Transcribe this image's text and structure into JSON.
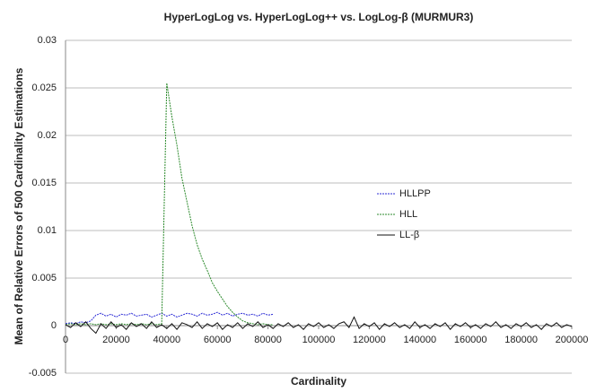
{
  "chart_data": {
    "type": "line",
    "title": "HyperLogLog vs. HyperLogLog++ vs. LogLog-β (MURMUR3)",
    "xlabel": "Cardinality",
    "ylabel": "Mean of Relative Errors of  500 Cardinality Estimations",
    "x": [
      0,
      2000,
      4000,
      6000,
      8000,
      10000,
      12000,
      14000,
      16000,
      18000,
      20000,
      22000,
      24000,
      26000,
      28000,
      30000,
      32000,
      34000,
      36000,
      38000,
      40000,
      42000,
      44000,
      46000,
      48000,
      50000,
      52000,
      54000,
      56000,
      58000,
      60000,
      62000,
      64000,
      66000,
      68000,
      70000,
      72000,
      74000,
      76000,
      78000,
      80000,
      82000,
      84000,
      86000,
      88000,
      90000,
      92000,
      94000,
      96000,
      98000,
      100000,
      102000,
      104000,
      106000,
      108000,
      110000,
      112000,
      114000,
      116000,
      118000,
      120000,
      122000,
      124000,
      126000,
      128000,
      130000,
      132000,
      134000,
      136000,
      138000,
      140000,
      142000,
      144000,
      146000,
      148000,
      150000,
      152000,
      154000,
      156000,
      158000,
      160000,
      162000,
      164000,
      166000,
      168000,
      170000,
      172000,
      174000,
      176000,
      178000,
      180000,
      182000,
      184000,
      186000,
      188000,
      190000,
      192000,
      194000,
      196000,
      198000,
      200000
    ],
    "series": [
      {
        "name": "HLLPP",
        "color": "#2b2bd6",
        "line_style": "dashed",
        "values": [
          0.0002,
          0.0003,
          0.0002,
          0.0004,
          0.0003,
          0.0005,
          0.0011,
          0.0013,
          0.001,
          0.0012,
          0.0009,
          0.0012,
          0.0011,
          0.0013,
          0.001,
          0.0011,
          0.0012,
          0.0009,
          0.0011,
          0.0013,
          0.001,
          0.0012,
          0.0009,
          0.0011,
          0.0013,
          0.0012,
          0.001,
          0.0013,
          0.0011,
          0.0012,
          0.0014,
          0.0011,
          0.0013,
          0.001,
          0.0012,
          0.0013,
          0.0011,
          0.0012,
          0.001,
          0.0013,
          0.0011,
          0.0012,
          null,
          null,
          null,
          null,
          null,
          null,
          null,
          null,
          null,
          null,
          null,
          null,
          null,
          null,
          null,
          null,
          null,
          null,
          null,
          null,
          null,
          null,
          null,
          null,
          null,
          null,
          null,
          null,
          null,
          null,
          null,
          null,
          null,
          null,
          null,
          null,
          null,
          null,
          null,
          null,
          null,
          null,
          null,
          null,
          null,
          null,
          null,
          null,
          null,
          null,
          null,
          null,
          null,
          null,
          null,
          null,
          null,
          null,
          null
        ]
      },
      {
        "name": "HLL",
        "color": "#2e8b2e",
        "line_style": "dashed",
        "values": [
          0.0001,
          0.0002,
          0.0001,
          0.0002,
          0.0001,
          0.0002,
          0.0001,
          0.0002,
          0.0001,
          0.0002,
          0.0001,
          0.0002,
          0.0001,
          0.0002,
          0.0001,
          0.0002,
          0.0001,
          0.0002,
          0.0001,
          0.0002,
          0.0255,
          0.022,
          0.019,
          0.0155,
          0.013,
          0.0105,
          0.0085,
          0.007,
          0.0058,
          0.0045,
          0.0036,
          0.0028,
          0.002,
          0.0014,
          0.0009,
          0.0005,
          0.0003,
          0.0002,
          0.0001,
          0.0002,
          0.0001,
          0.0001,
          null,
          null,
          null,
          null,
          null,
          null,
          null,
          null,
          null,
          null,
          null,
          null,
          null,
          null,
          null,
          null,
          null,
          null,
          null,
          null,
          null,
          null,
          null,
          null,
          null,
          null,
          null,
          null,
          null,
          null,
          null,
          null,
          null,
          null,
          null,
          null,
          null,
          null,
          null,
          null,
          null,
          null,
          null,
          null,
          null,
          null,
          null,
          null,
          null,
          null,
          null,
          null,
          null,
          null,
          null,
          null,
          null,
          null,
          null
        ]
      },
      {
        "name": "LL-β",
        "color": "#111111",
        "line_style": "solid",
        "values": [
          0.0001,
          -0.0002,
          0.0003,
          -0.0001,
          0.0004,
          -0.0003,
          -0.0008,
          0.0002,
          -0.0003,
          0.0004,
          -0.0002,
          0.0001,
          -0.0004,
          0.0003,
          -0.0001,
          0.0002,
          -0.0003,
          0.0004,
          -0.0002,
          0.0001,
          -0.0003,
          0.0002,
          -0.0004,
          0.0003,
          0.0001,
          -0.0002,
          0.0004,
          -0.0003,
          0.0002,
          -0.0001,
          0.0003,
          -0.0004,
          0.0001,
          -0.0002,
          0.0003,
          -0.0003,
          0.0002,
          -0.0001,
          0.0004,
          -0.0002,
          0.0001,
          -0.0003,
          0.0002,
          -0.0001,
          0.0003,
          -0.0002,
          0.0001,
          -0.0004,
          0.0002,
          -0.0001,
          0.0003,
          -0.0002,
          0.0001,
          -0.0003,
          0.0002,
          0.0004,
          -0.0002,
          0.0009,
          -0.0003,
          0.0002,
          -0.0001,
          0.0003,
          -0.0004,
          0.0002,
          -0.0001,
          0.0003,
          -0.0002,
          0.0001,
          -0.0003,
          0.0004,
          -0.0002,
          0.0001,
          -0.0003,
          0.0002,
          -0.0001,
          0.0003,
          -0.0004,
          0.0002,
          -0.0001,
          0.0003,
          -0.0002,
          0.0001,
          -0.0003,
          0.0002,
          -0.0001,
          0.0004,
          -0.0002,
          0.0001,
          -0.0003,
          0.0002,
          -0.0001,
          0.0003,
          -0.0002,
          0.0001,
          -0.0004,
          0.0002,
          -0.0001,
          0.0003,
          -0.0002,
          0.0001,
          -0.0001
        ]
      }
    ],
    "xlim": [
      0,
      200000
    ],
    "xticks": [
      0,
      20000,
      40000,
      60000,
      80000,
      100000,
      120000,
      140000,
      160000,
      180000,
      200000
    ],
    "ylim": [
      -0.005,
      0.03
    ],
    "yticks": [
      -0.005,
      0,
      0.005,
      0.01,
      0.015,
      0.02,
      0.025,
      0.03
    ],
    "grid": true
  }
}
